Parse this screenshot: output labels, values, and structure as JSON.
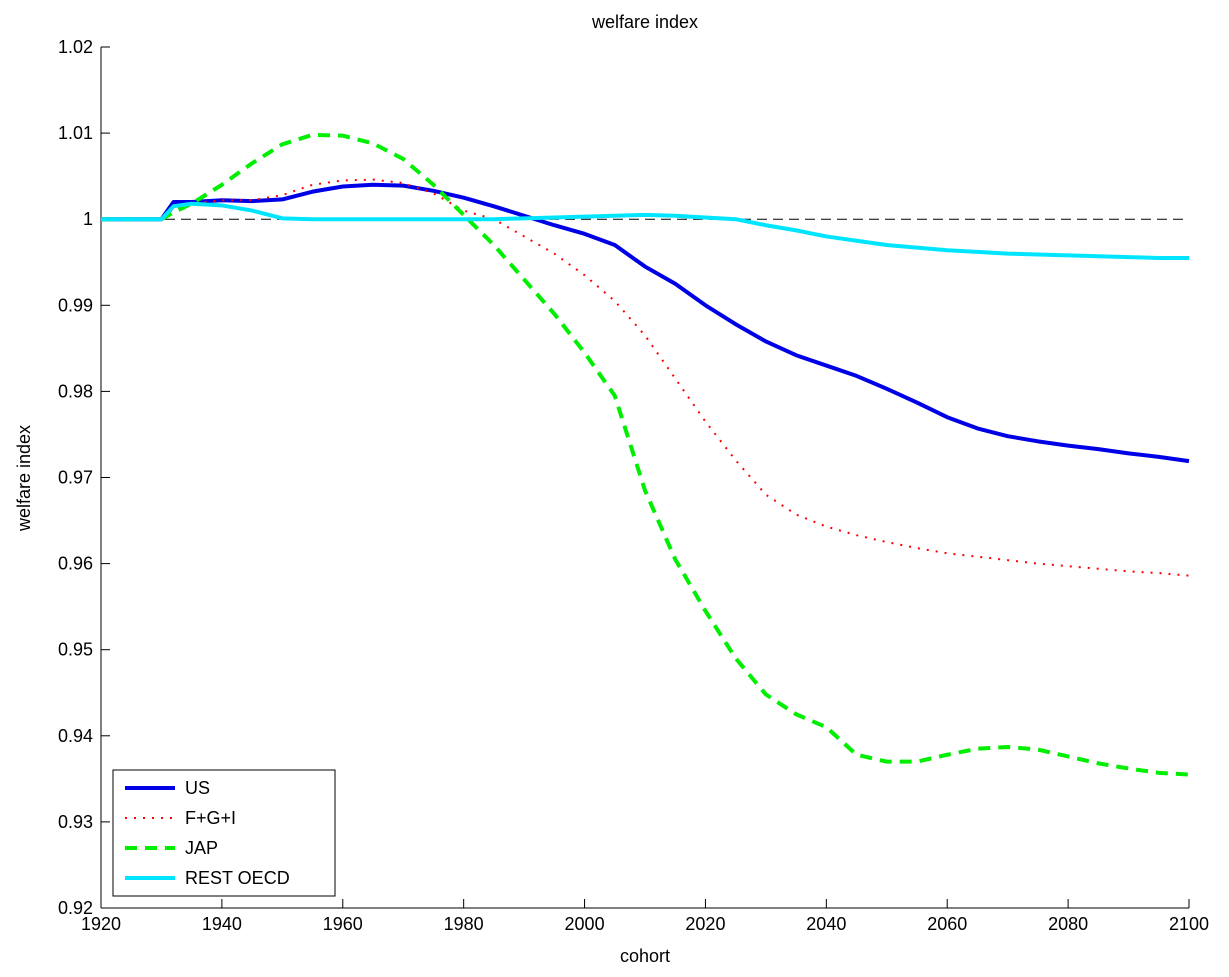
{
  "chart_data": {
    "type": "line",
    "title": "welfare index",
    "xlabel": "cohort",
    "ylabel": "welfare index",
    "x": [
      1920,
      1925,
      1930,
      1932,
      1935,
      1940,
      1945,
      1950,
      1955,
      1960,
      1965,
      1970,
      1975,
      1980,
      1985,
      1990,
      1995,
      2000,
      2005,
      2010,
      2015,
      2020,
      2025,
      2030,
      2035,
      2040,
      2045,
      2050,
      2055,
      2060,
      2065,
      2070,
      2075,
      2080,
      2085,
      2090,
      2095,
      2100
    ],
    "series": [
      {
        "name": "US",
        "color": "#0000e6",
        "style": "solid",
        "values": [
          1,
          1,
          1,
          1.002,
          1.002,
          1.0022,
          1.0021,
          1.0023,
          1.0032,
          1.0038,
          1.004,
          1.0039,
          1.0033,
          1.0025,
          1.0015,
          1.0004,
          0.9993,
          0.9983,
          0.997,
          0.9945,
          0.9925,
          0.99,
          0.9878,
          0.9858,
          0.9842,
          0.983,
          0.9818,
          0.9803,
          0.9787,
          0.977,
          0.9757,
          0.9748,
          0.9742,
          0.9737,
          0.9733,
          0.9728,
          0.9724,
          0.9719
        ]
      },
      {
        "name": "F+G+I",
        "color": "#ff0000",
        "style": "dotted",
        "values": [
          1,
          1,
          1,
          1.0012,
          1.0018,
          1.0022,
          1.0022,
          1.0028,
          1.004,
          1.0045,
          1.0046,
          1.0042,
          1.003,
          1.001,
          1.0,
          0.998,
          0.996,
          0.9935,
          0.9905,
          0.9865,
          0.9815,
          0.9765,
          0.972,
          0.968,
          0.9657,
          0.9643,
          0.9633,
          0.9625,
          0.9618,
          0.9612,
          0.9608,
          0.9604,
          0.96,
          0.9597,
          0.9594,
          0.9591,
          0.9589,
          0.9586
        ]
      },
      {
        "name": "JAP",
        "color": "#00ee00",
        "style": "dashed",
        "values": [
          1,
          1,
          1,
          1.0008,
          1.0018,
          1.004,
          1.0065,
          1.0087,
          1.0098,
          1.0097,
          1.0088,
          1.007,
          1.004,
          1.0005,
          0.997,
          0.993,
          0.989,
          0.9845,
          0.9795,
          0.9685,
          0.9605,
          0.9545,
          0.949,
          0.9448,
          0.9425,
          0.941,
          0.9378,
          0.937,
          0.937,
          0.9378,
          0.9385,
          0.9387,
          0.9384,
          0.9376,
          0.9368,
          0.9362,
          0.9357,
          0.9355
        ]
      },
      {
        "name": "REST OECD",
        "color": "#00e5ff",
        "style": "solid",
        "values": [
          1,
          1,
          1,
          1.0015,
          1.0018,
          1.0016,
          1.001,
          1.0001,
          1.0,
          1.0,
          1.0,
          1.0,
          1.0,
          1.0,
          1.0,
          1.0001,
          1.0002,
          1.0003,
          1.0004,
          1.0005,
          1.0004,
          1.0002,
          1.0,
          0.9993,
          0.9987,
          0.998,
          0.9975,
          0.997,
          0.9967,
          0.9964,
          0.9962,
          0.996,
          0.9959,
          0.9958,
          0.9957,
          0.9956,
          0.9955,
          0.9955
        ]
      }
    ],
    "reference_line": 1,
    "xlim": [
      1920,
      2100
    ],
    "xticks": [
      1920,
      1940,
      1960,
      1980,
      2000,
      2020,
      2040,
      2060,
      2080,
      2100
    ],
    "ylim": [
      0.92,
      1.02
    ],
    "yticks": [
      0.92,
      0.93,
      0.94,
      0.95,
      0.96,
      0.97,
      0.98,
      0.99,
      1,
      1.01,
      1.02
    ],
    "legend": "lower left"
  }
}
